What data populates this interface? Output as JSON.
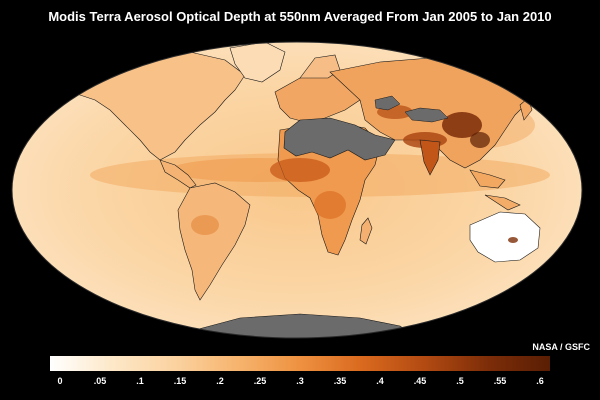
{
  "title": "Modis Terra Aerosol Optical Depth at 550nm Averaged From Jan 2005 to Jan 2010",
  "credit": "NASA / GSFC",
  "legend": {
    "min": 0,
    "max": 0.6,
    "ticks": [
      "0",
      ".05",
      ".1",
      ".15",
      ".2",
      ".25",
      ".3",
      ".35",
      ".4",
      ".45",
      ".5",
      ".55",
      ".6"
    ],
    "colors": [
      "#ffffff",
      "#fde8c8",
      "#fbd2a0",
      "#f6b46e",
      "#ee9140",
      "#d9691e",
      "#b24a12",
      "#7d2d08",
      "#5a1e04"
    ]
  },
  "colors": {
    "background": "#000000",
    "no_data": "#6b6b6b",
    "ocean_base": "#fbd39e",
    "coastline": "#1a1a1a"
  }
}
